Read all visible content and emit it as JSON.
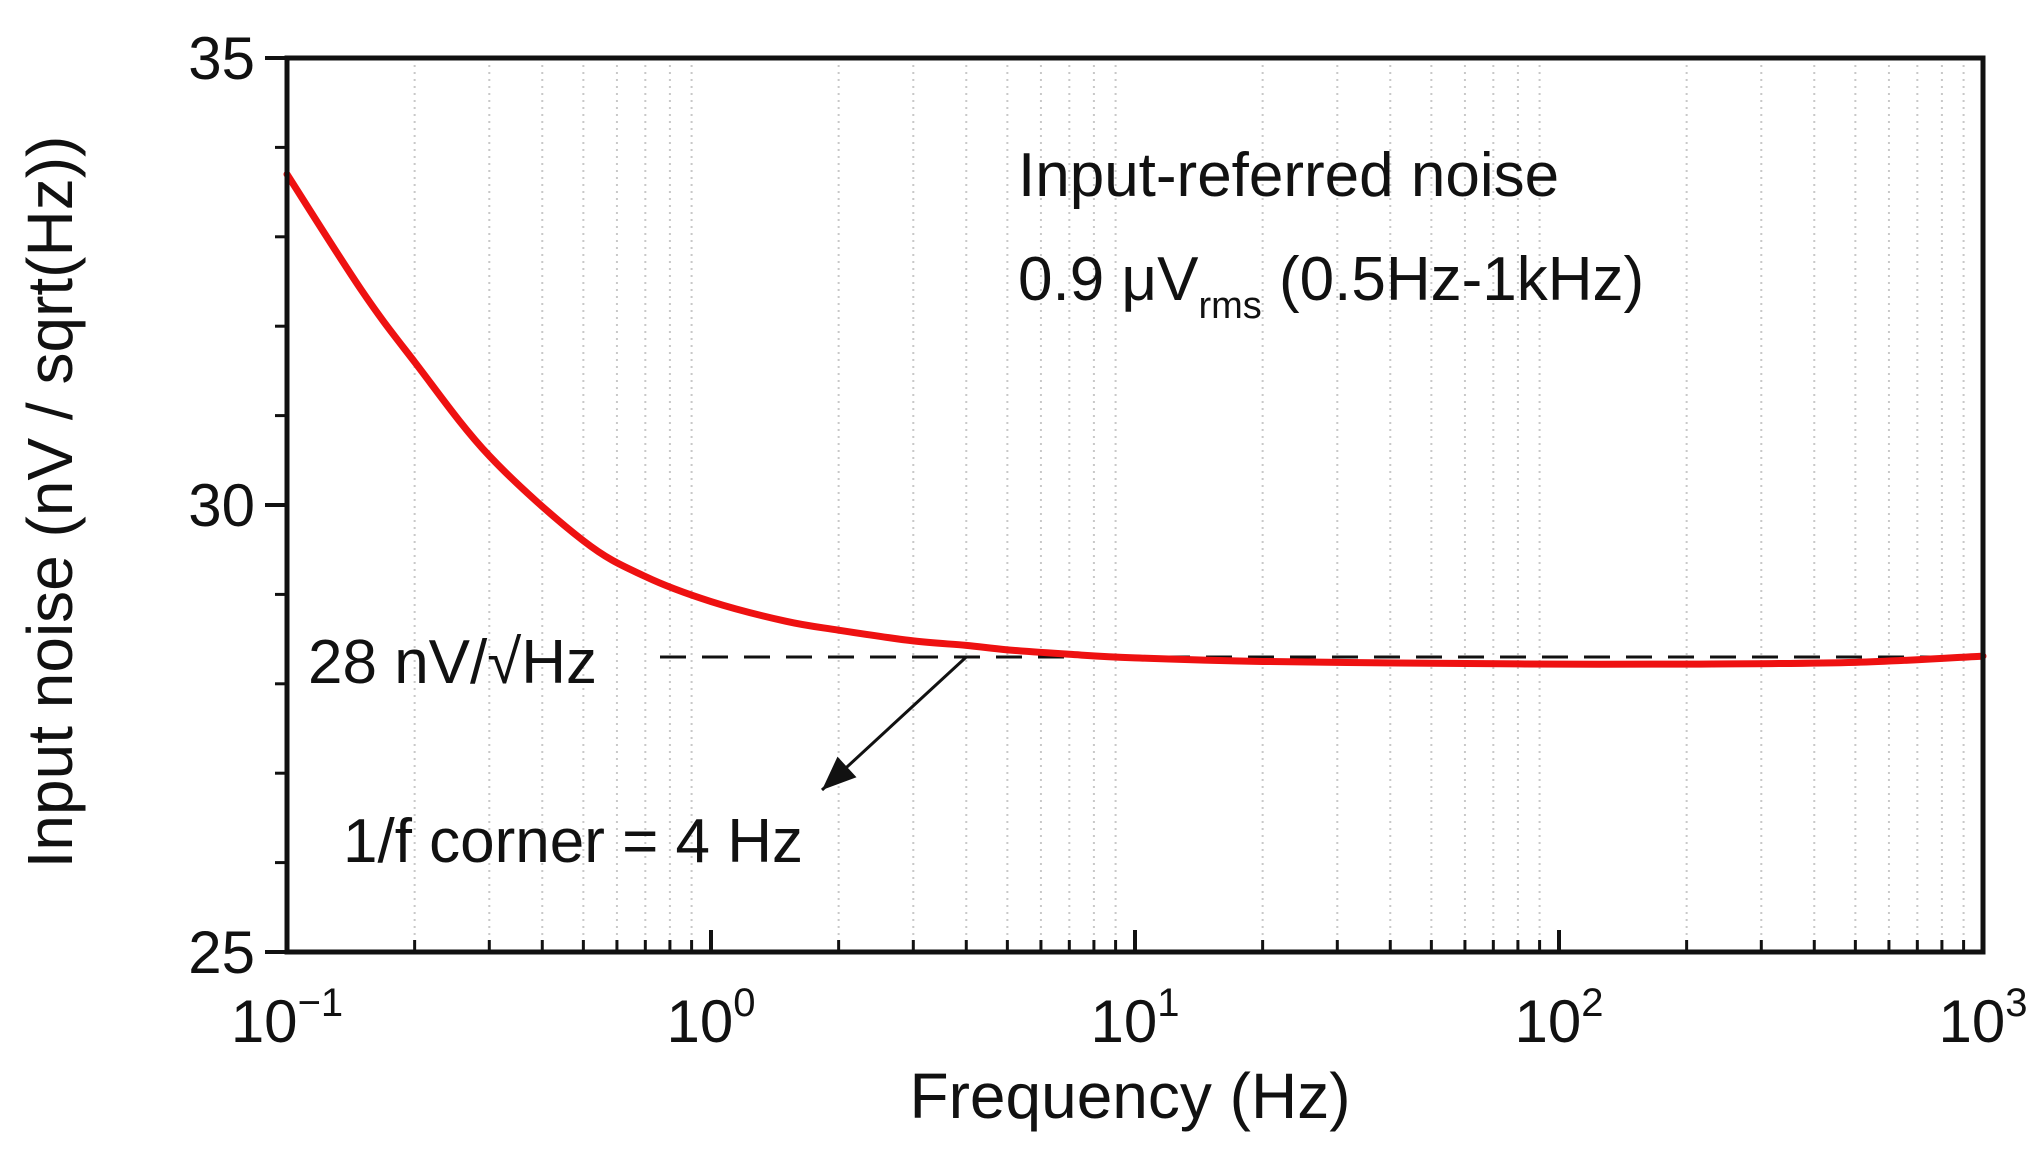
{
  "chart_data": {
    "type": "line",
    "title": "",
    "xlabel": "Frequency (Hz)",
    "ylabel": "Input noise (nV / sqrt(Hz))",
    "xscale": "log",
    "xlim": [
      0.1,
      1000
    ],
    "ylim": [
      25,
      35
    ],
    "x_ticks": [
      {
        "value": 0.1,
        "base": "10",
        "exp": "−1"
      },
      {
        "value": 1,
        "base": "10",
        "exp": "0"
      },
      {
        "value": 10,
        "base": "10",
        "exp": "1"
      },
      {
        "value": 100,
        "base": "10",
        "exp": "2"
      },
      {
        "value": 1000,
        "base": "10",
        "exp": "3"
      }
    ],
    "y_ticks": [
      {
        "value": 25,
        "label": "25"
      },
      {
        "value": 30,
        "label": "30"
      },
      {
        "value": 35,
        "label": "35"
      }
    ],
    "grid": "vertical minor dotted",
    "series": [
      {
        "name": "Input noise",
        "color": "#ee1111",
        "x": [
          0.1,
          0.15,
          0.2,
          0.3,
          0.5,
          0.7,
          1,
          1.5,
          2,
          3,
          4,
          5,
          7,
          10,
          20,
          50,
          100,
          200,
          500,
          1000
        ],
        "y": [
          33.7,
          32.4,
          31.6,
          30.55,
          29.6,
          29.2,
          28.92,
          28.7,
          28.6,
          28.48,
          28.43,
          28.38,
          28.33,
          28.29,
          28.25,
          28.23,
          28.22,
          28.22,
          28.24,
          28.31
        ]
      }
    ],
    "reference_line": {
      "value": 28.3,
      "label": "28 nV/√Hz",
      "color": "#111111",
      "style": "dashed"
    },
    "annotations": {
      "noise_title": "Input-referred noise",
      "noise_value_prefix": "0.9 μV",
      "noise_value_sub": "rms",
      "noise_value_suffix": " (0.5Hz-1kHz)",
      "corner_label": "1/f corner = 4 Hz",
      "corner_frequency": 4
    }
  }
}
